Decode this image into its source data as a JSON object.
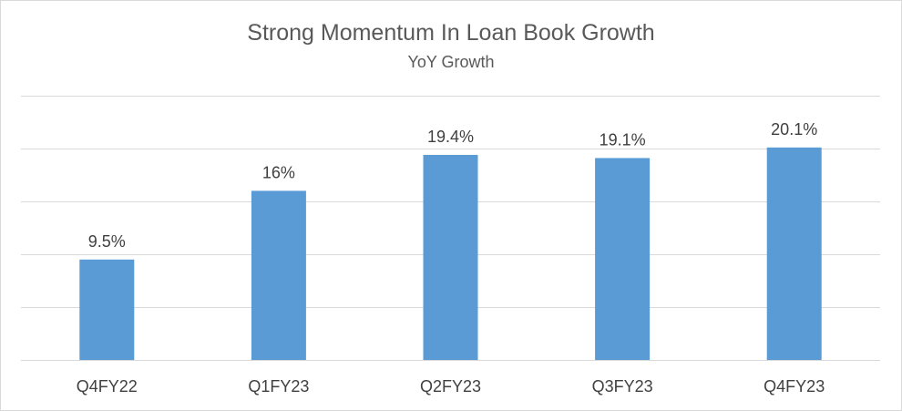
{
  "chart_data": {
    "type": "bar",
    "title": "Strong Momentum In Loan Book Growth",
    "subtitle": "YoY Growth",
    "categories": [
      "Q4FY22",
      "Q1FY23",
      "Q2FY23",
      "Q3FY23",
      "Q4FY23"
    ],
    "values": [
      9.5,
      16,
      19.4,
      19.1,
      20.1
    ],
    "data_labels": [
      "9.5%",
      "16%",
      "19.4%",
      "19.1%",
      "20.1%"
    ],
    "ylim": [
      0,
      25
    ],
    "y_gridlines": [
      0,
      5,
      10,
      15,
      20,
      25
    ],
    "grid": true,
    "legend": "none",
    "xlabel": "",
    "ylabel": "",
    "bar_color": "#5b9bd5",
    "grid_color": "#d9d9d9"
  }
}
